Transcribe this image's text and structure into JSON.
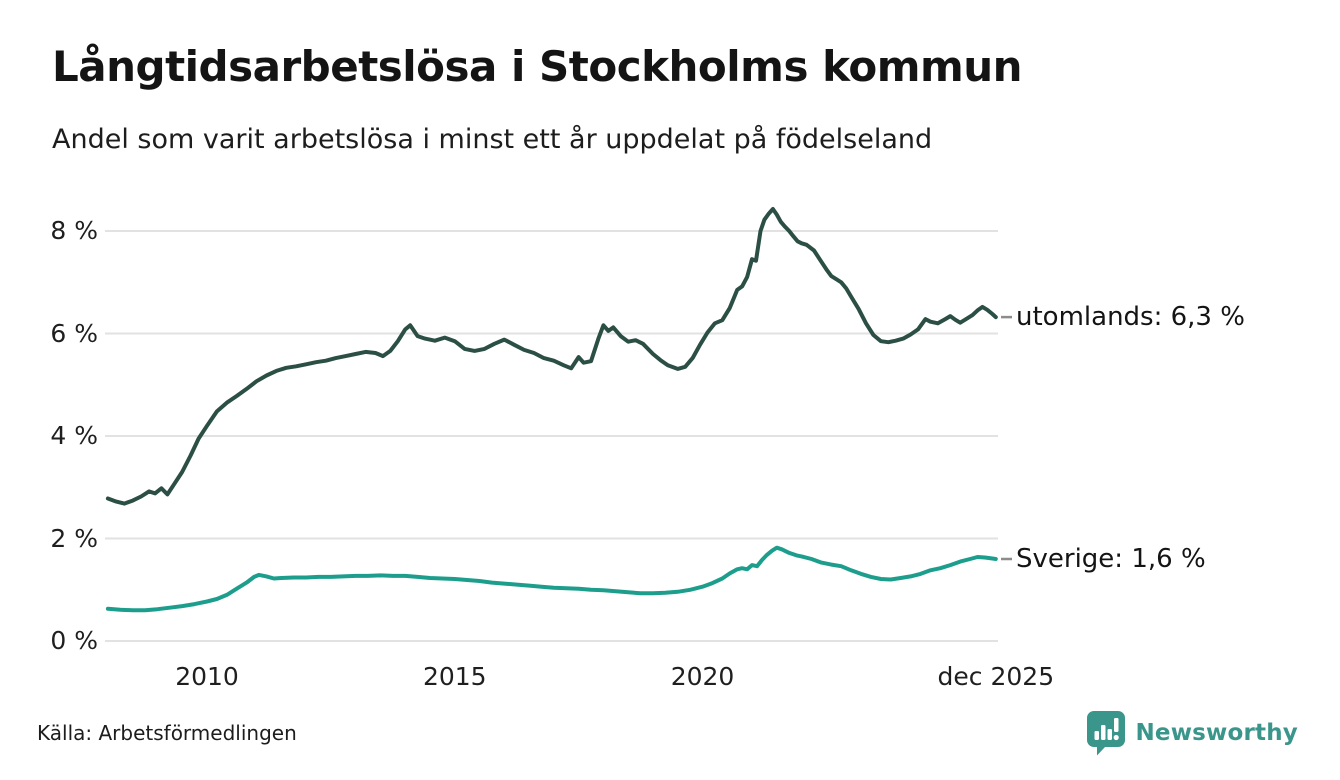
{
  "header": {
    "title": "Långtidsarbetslösa i Stockholms kommun",
    "subtitle": "Andel som varit arbetslösa i minst ett år uppdelat på födelseland"
  },
  "footer": {
    "source": "Källa: Arbetsförmedlingen",
    "brand_name": "Newsworthy"
  },
  "colors": {
    "utomlands_line": "#2c4f45",
    "sverige_line": "#1d9e8d",
    "grid": "#e2e2e2",
    "connector": "#8c8c8c",
    "brand_teal": "#3a958b",
    "text": "#1d1d1d"
  },
  "chart_data": {
    "type": "line",
    "title": "Långtidsarbetslösa i Stockholms kommun",
    "subtitle": "Andel som varit arbetslösa i minst ett år uppdelat på födelseland",
    "unit": "%",
    "grid": "horizontal",
    "legend_position": "right-end-labels",
    "xlim": [
      2007.9,
      2026.0
    ],
    "ylim": [
      0,
      8.6
    ],
    "y_ticks": [
      {
        "label": "8 %",
        "v": 8
      },
      {
        "label": "6 %",
        "v": 6
      },
      {
        "label": "4 %",
        "v": 4
      },
      {
        "label": "2 %",
        "v": 2
      },
      {
        "label": "0 %",
        "v": 0
      }
    ],
    "x_ticks": [
      {
        "label": "2010",
        "t": 2010
      },
      {
        "label": "2015",
        "t": 2015
      },
      {
        "label": "2020",
        "t": 2020
      },
      {
        "label": "dec 2025",
        "t": 2025.92
      }
    ],
    "series": [
      {
        "name": "utomlands",
        "label": "utomlands: 6,3 %",
        "end_value": "6,3 %",
        "color": "#2c4f45",
        "points": [
          [
            2008.0,
            2.78
          ],
          [
            2008.17,
            2.72
          ],
          [
            2008.33,
            2.68
          ],
          [
            2008.5,
            2.74
          ],
          [
            2008.67,
            2.82
          ],
          [
            2008.83,
            2.92
          ],
          [
            2008.95,
            2.88
          ],
          [
            2009.08,
            2.98
          ],
          [
            2009.2,
            2.86
          ],
          [
            2009.33,
            3.05
          ],
          [
            2009.5,
            3.3
          ],
          [
            2009.67,
            3.62
          ],
          [
            2009.83,
            3.95
          ],
          [
            2010.0,
            4.2
          ],
          [
            2010.2,
            4.48
          ],
          [
            2010.4,
            4.65
          ],
          [
            2010.6,
            4.78
          ],
          [
            2010.8,
            4.92
          ],
          [
            2011.0,
            5.07
          ],
          [
            2011.2,
            5.18
          ],
          [
            2011.4,
            5.27
          ],
          [
            2011.6,
            5.33
          ],
          [
            2011.8,
            5.36
          ],
          [
            2012.0,
            5.4
          ],
          [
            2012.2,
            5.44
          ],
          [
            2012.4,
            5.47
          ],
          [
            2012.6,
            5.52
          ],
          [
            2012.8,
            5.56
          ],
          [
            2013.0,
            5.6
          ],
          [
            2013.2,
            5.64
          ],
          [
            2013.4,
            5.62
          ],
          [
            2013.55,
            5.56
          ],
          [
            2013.7,
            5.66
          ],
          [
            2013.85,
            5.85
          ],
          [
            2014.0,
            6.08
          ],
          [
            2014.1,
            6.16
          ],
          [
            2014.25,
            5.95
          ],
          [
            2014.4,
            5.9
          ],
          [
            2014.6,
            5.86
          ],
          [
            2014.8,
            5.92
          ],
          [
            2015.0,
            5.85
          ],
          [
            2015.2,
            5.7
          ],
          [
            2015.4,
            5.66
          ],
          [
            2015.6,
            5.7
          ],
          [
            2015.8,
            5.8
          ],
          [
            2016.0,
            5.88
          ],
          [
            2016.2,
            5.78
          ],
          [
            2016.4,
            5.68
          ],
          [
            2016.6,
            5.62
          ],
          [
            2016.8,
            5.52
          ],
          [
            2017.0,
            5.47
          ],
          [
            2017.2,
            5.38
          ],
          [
            2017.35,
            5.32
          ],
          [
            2017.5,
            5.54
          ],
          [
            2017.6,
            5.43
          ],
          [
            2017.75,
            5.46
          ],
          [
            2017.9,
            5.9
          ],
          [
            2018.0,
            6.16
          ],
          [
            2018.1,
            6.05
          ],
          [
            2018.2,
            6.12
          ],
          [
            2018.35,
            5.95
          ],
          [
            2018.5,
            5.84
          ],
          [
            2018.65,
            5.87
          ],
          [
            2018.8,
            5.8
          ],
          [
            2019.0,
            5.6
          ],
          [
            2019.15,
            5.48
          ],
          [
            2019.3,
            5.38
          ],
          [
            2019.5,
            5.31
          ],
          [
            2019.65,
            5.35
          ],
          [
            2019.8,
            5.52
          ],
          [
            2019.95,
            5.78
          ],
          [
            2020.1,
            6.02
          ],
          [
            2020.25,
            6.2
          ],
          [
            2020.4,
            6.26
          ],
          [
            2020.55,
            6.5
          ],
          [
            2020.7,
            6.85
          ],
          [
            2020.8,
            6.92
          ],
          [
            2020.9,
            7.1
          ],
          [
            2021.0,
            7.45
          ],
          [
            2021.08,
            7.42
          ],
          [
            2021.17,
            8.0
          ],
          [
            2021.25,
            8.22
          ],
          [
            2021.33,
            8.33
          ],
          [
            2021.42,
            8.43
          ],
          [
            2021.5,
            8.32
          ],
          [
            2021.58,
            8.18
          ],
          [
            2021.67,
            8.08
          ],
          [
            2021.75,
            8.0
          ],
          [
            2021.83,
            7.9
          ],
          [
            2021.92,
            7.8
          ],
          [
            2022.0,
            7.76
          ],
          [
            2022.1,
            7.73
          ],
          [
            2022.25,
            7.62
          ],
          [
            2022.4,
            7.4
          ],
          [
            2022.5,
            7.25
          ],
          [
            2022.6,
            7.12
          ],
          [
            2022.7,
            7.06
          ],
          [
            2022.8,
            7.0
          ],
          [
            2022.9,
            6.88
          ],
          [
            2023.0,
            6.72
          ],
          [
            2023.15,
            6.48
          ],
          [
            2023.3,
            6.2
          ],
          [
            2023.45,
            5.97
          ],
          [
            2023.6,
            5.85
          ],
          [
            2023.75,
            5.83
          ],
          [
            2023.9,
            5.86
          ],
          [
            2024.05,
            5.9
          ],
          [
            2024.2,
            5.98
          ],
          [
            2024.35,
            6.08
          ],
          [
            2024.5,
            6.28
          ],
          [
            2024.6,
            6.23
          ],
          [
            2024.75,
            6.2
          ],
          [
            2024.9,
            6.28
          ],
          [
            2025.0,
            6.34
          ],
          [
            2025.1,
            6.27
          ],
          [
            2025.2,
            6.21
          ],
          [
            2025.3,
            6.27
          ],
          [
            2025.45,
            6.36
          ],
          [
            2025.55,
            6.45
          ],
          [
            2025.65,
            6.52
          ],
          [
            2025.75,
            6.46
          ],
          [
            2025.85,
            6.38
          ],
          [
            2025.92,
            6.32
          ]
        ]
      },
      {
        "name": "Sverige",
        "label": "Sverige: 1,6 %",
        "end_value": "1,6 %",
        "color": "#1d9e8d",
        "points": [
          [
            2008.0,
            0.63
          ],
          [
            2008.25,
            0.61
          ],
          [
            2008.5,
            0.6
          ],
          [
            2008.75,
            0.6
          ],
          [
            2009.0,
            0.62
          ],
          [
            2009.25,
            0.65
          ],
          [
            2009.5,
            0.68
          ],
          [
            2009.75,
            0.72
          ],
          [
            2010.0,
            0.77
          ],
          [
            2010.2,
            0.82
          ],
          [
            2010.4,
            0.9
          ],
          [
            2010.6,
            1.02
          ],
          [
            2010.8,
            1.14
          ],
          [
            2010.95,
            1.25
          ],
          [
            2011.05,
            1.29
          ],
          [
            2011.2,
            1.26
          ],
          [
            2011.35,
            1.22
          ],
          [
            2011.5,
            1.23
          ],
          [
            2011.75,
            1.24
          ],
          [
            2012.0,
            1.24
          ],
          [
            2012.25,
            1.25
          ],
          [
            2012.5,
            1.25
          ],
          [
            2012.75,
            1.26
          ],
          [
            2013.0,
            1.27
          ],
          [
            2013.25,
            1.27
          ],
          [
            2013.5,
            1.28
          ],
          [
            2013.75,
            1.27
          ],
          [
            2014.0,
            1.27
          ],
          [
            2014.25,
            1.25
          ],
          [
            2014.5,
            1.23
          ],
          [
            2014.75,
            1.22
          ],
          [
            2015.0,
            1.21
          ],
          [
            2015.25,
            1.19
          ],
          [
            2015.5,
            1.17
          ],
          [
            2015.75,
            1.14
          ],
          [
            2016.0,
            1.12
          ],
          [
            2016.25,
            1.1
          ],
          [
            2016.5,
            1.08
          ],
          [
            2016.75,
            1.06
          ],
          [
            2017.0,
            1.04
          ],
          [
            2017.25,
            1.03
          ],
          [
            2017.5,
            1.02
          ],
          [
            2017.75,
            1.0
          ],
          [
            2018.0,
            0.99
          ],
          [
            2018.25,
            0.97
          ],
          [
            2018.5,
            0.95
          ],
          [
            2018.75,
            0.93
          ],
          [
            2019.0,
            0.93
          ],
          [
            2019.25,
            0.94
          ],
          [
            2019.5,
            0.96
          ],
          [
            2019.75,
            1.0
          ],
          [
            2020.0,
            1.06
          ],
          [
            2020.2,
            1.13
          ],
          [
            2020.4,
            1.22
          ],
          [
            2020.55,
            1.32
          ],
          [
            2020.7,
            1.4
          ],
          [
            2020.8,
            1.42
          ],
          [
            2020.9,
            1.4
          ],
          [
            2021.0,
            1.48
          ],
          [
            2021.1,
            1.46
          ],
          [
            2021.2,
            1.58
          ],
          [
            2021.3,
            1.68
          ],
          [
            2021.4,
            1.76
          ],
          [
            2021.5,
            1.82
          ],
          [
            2021.6,
            1.79
          ],
          [
            2021.75,
            1.72
          ],
          [
            2021.9,
            1.67
          ],
          [
            2022.0,
            1.65
          ],
          [
            2022.2,
            1.6
          ],
          [
            2022.4,
            1.53
          ],
          [
            2022.6,
            1.49
          ],
          [
            2022.8,
            1.46
          ],
          [
            2023.0,
            1.38
          ],
          [
            2023.2,
            1.31
          ],
          [
            2023.4,
            1.25
          ],
          [
            2023.6,
            1.21
          ],
          [
            2023.8,
            1.2
          ],
          [
            2024.0,
            1.23
          ],
          [
            2024.2,
            1.26
          ],
          [
            2024.4,
            1.31
          ],
          [
            2024.6,
            1.38
          ],
          [
            2024.8,
            1.42
          ],
          [
            2025.0,
            1.48
          ],
          [
            2025.2,
            1.55
          ],
          [
            2025.4,
            1.6
          ],
          [
            2025.55,
            1.64
          ],
          [
            2025.7,
            1.63
          ],
          [
            2025.85,
            1.61
          ],
          [
            2025.92,
            1.6
          ]
        ]
      }
    ]
  }
}
